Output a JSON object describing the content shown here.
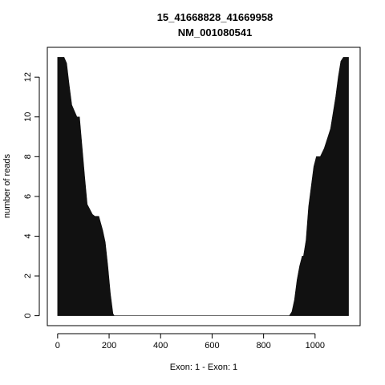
{
  "chart_data": {
    "type": "area",
    "title": "15_41668828_41669958",
    "subtitle": "NM_001080541",
    "xlabel": "Exon: 1 - Exon: 1",
    "ylabel": "number of reads",
    "xlim": [
      -40,
      1175
    ],
    "ylim": [
      -0.5,
      13.5
    ],
    "x_ticks": [
      0,
      200,
      400,
      600,
      800,
      1000
    ],
    "y_ticks": [
      0,
      2,
      4,
      6,
      8,
      10,
      12
    ],
    "grid": false,
    "legend": "none",
    "fill_color": "#111111",
    "series": [
      {
        "x": [
          0,
          0,
          25,
          35,
          45,
          55,
          65,
          75,
          85,
          95,
          105,
          115,
          135,
          145,
          160,
          175,
          185,
          195,
          205,
          215,
          220,
          900,
          910,
          920,
          930,
          940,
          950,
          955,
          965,
          975,
          985,
          995,
          1005,
          1020,
          1035,
          1050,
          1060,
          1070,
          1080,
          1090,
          1100,
          1110,
          1120,
          1130,
          1130
        ],
        "y": [
          0,
          13,
          13,
          12.7,
          11.6,
          10.6,
          10.3,
          10,
          10,
          8.5,
          7,
          5.6,
          5.1,
          5,
          5,
          4.3,
          3.7,
          2.5,
          1.1,
          0.1,
          0,
          0,
          0.2,
          0.8,
          1.8,
          2.5,
          3,
          3,
          3.8,
          5.5,
          6.5,
          7.5,
          8,
          8,
          8.4,
          9,
          9.4,
          10.2,
          11,
          12,
          12.8,
          13,
          13,
          13,
          0
        ]
      }
    ]
  }
}
